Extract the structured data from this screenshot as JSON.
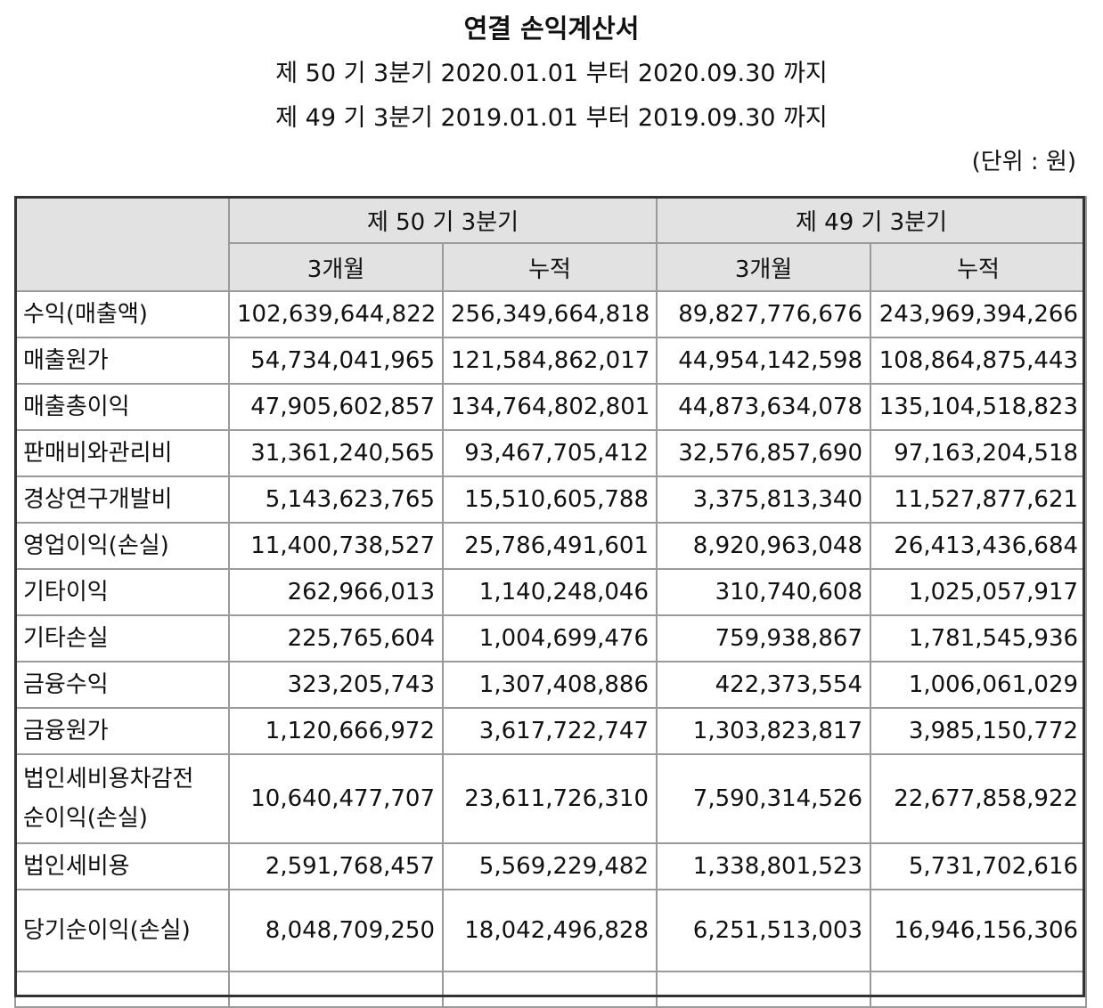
{
  "title": "연결 손익계산서",
  "period_current": "제 50 기 3분기 2020.01.01 부터 2020.09.30 까지",
  "period_prior": "제 49 기 3분기 2019.01.01 부터 2019.09.30 까지",
  "unit": "(단위 : 원)",
  "header": {
    "current": "제 50 기 3분기",
    "prior": "제 49 기 3분기",
    "three_months": "3개월",
    "cumulative": "누적"
  },
  "rows": [
    {
      "label": "수익(매출액)",
      "cur_3m": "102,639,644,822",
      "cur_cum": "256,349,664,818",
      "prior_3m": "89,827,776,676",
      "prior_cum": "243,969,394,266"
    },
    {
      "label": "매출원가",
      "cur_3m": "54,734,041,965",
      "cur_cum": "121,584,862,017",
      "prior_3m": "44,954,142,598",
      "prior_cum": "108,864,875,443"
    },
    {
      "label": "매출총이익",
      "cur_3m": "47,905,602,857",
      "cur_cum": "134,764,802,801",
      "prior_3m": "44,873,634,078",
      "prior_cum": "135,104,518,823"
    },
    {
      "label": "판매비와관리비",
      "cur_3m": "31,361,240,565",
      "cur_cum": "93,467,705,412",
      "prior_3m": "32,576,857,690",
      "prior_cum": "97,163,204,518"
    },
    {
      "label": "경상연구개발비",
      "cur_3m": "5,143,623,765",
      "cur_cum": "15,510,605,788",
      "prior_3m": "3,375,813,340",
      "prior_cum": "11,527,877,621"
    },
    {
      "label": "영업이익(손실)",
      "cur_3m": "11,400,738,527",
      "cur_cum": "25,786,491,601",
      "prior_3m": "8,920,963,048",
      "prior_cum": "26,413,436,684"
    },
    {
      "label": "기타이익",
      "cur_3m": "262,966,013",
      "cur_cum": "1,140,248,046",
      "prior_3m": "310,740,608",
      "prior_cum": "1,025,057,917"
    },
    {
      "label": "기타손실",
      "cur_3m": "225,765,604",
      "cur_cum": "1,004,699,476",
      "prior_3m": "759,938,867",
      "prior_cum": "1,781,545,936"
    },
    {
      "label": "금융수익",
      "cur_3m": "323,205,743",
      "cur_cum": "1,307,408,886",
      "prior_3m": "422,373,554",
      "prior_cum": "1,006,061,029"
    },
    {
      "label": "금융원가",
      "cur_3m": "1,120,666,972",
      "cur_cum": "3,617,722,747",
      "prior_3m": "1,303,823,817",
      "prior_cum": "3,985,150,772"
    },
    {
      "label": "법인세비용차감전 순이익(손실)",
      "cur_3m": "10,640,477,707",
      "cur_cum": "23,611,726,310",
      "prior_3m": "7,590,314,526",
      "prior_cum": "22,677,858,922"
    },
    {
      "label": "법인세비용",
      "cur_3m": "2,591,768,457",
      "cur_cum": "5,569,229,482",
      "prior_3m": "1,338,801,523",
      "prior_cum": "5,731,702,616"
    },
    {
      "label": "당기순이익(손실)",
      "cur_3m": "8,048,709,250",
      "cur_cum": "18,042,496,828",
      "prior_3m": "6,251,513,003",
      "prior_cum": "16,946,156,306"
    }
  ]
}
